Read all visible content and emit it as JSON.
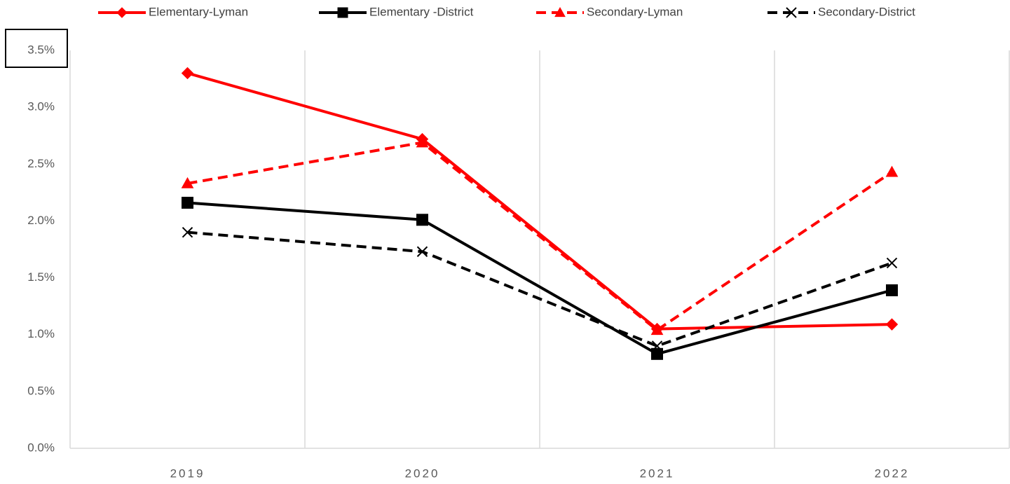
{
  "chart_data": {
    "type": "line",
    "categories": [
      "2019",
      "2020",
      "2021",
      "2022"
    ],
    "series": [
      {
        "name": "Elementary-Lyman",
        "color": "#ff0000",
        "marker": "diamond",
        "dashed": false,
        "values": [
          3.3,
          2.72,
          1.05,
          1.09
        ]
      },
      {
        "name": "Elementary -District",
        "color": "#000000",
        "marker": "square",
        "dashed": false,
        "values": [
          2.16,
          2.01,
          0.83,
          1.39
        ]
      },
      {
        "name": "Secondary-Lyman",
        "color": "#ff0000",
        "marker": "triangle",
        "dashed": true,
        "values": [
          2.33,
          2.69,
          1.04,
          2.43
        ]
      },
      {
        "name": "Secondary-District",
        "color": "#000000",
        "marker": "x",
        "dashed": true,
        "values": [
          1.9,
          1.73,
          0.9,
          1.63
        ]
      }
    ],
    "ylim": [
      0,
      3.5
    ],
    "yticks": [
      {
        "value": 0,
        "label": "0.0%"
      },
      {
        "value": 0.5,
        "label": "0.5%"
      },
      {
        "value": 1,
        "label": "1.0%"
      },
      {
        "value": 1.5,
        "label": "1.5%"
      },
      {
        "value": 2,
        "label": "2.0%"
      },
      {
        "value": 2.5,
        "label": "2.5%"
      },
      {
        "value": 3,
        "label": "3.0%"
      },
      {
        "value": 3.5,
        "label": "3.5%"
      }
    ],
    "grid": "x",
    "legend": "top"
  }
}
